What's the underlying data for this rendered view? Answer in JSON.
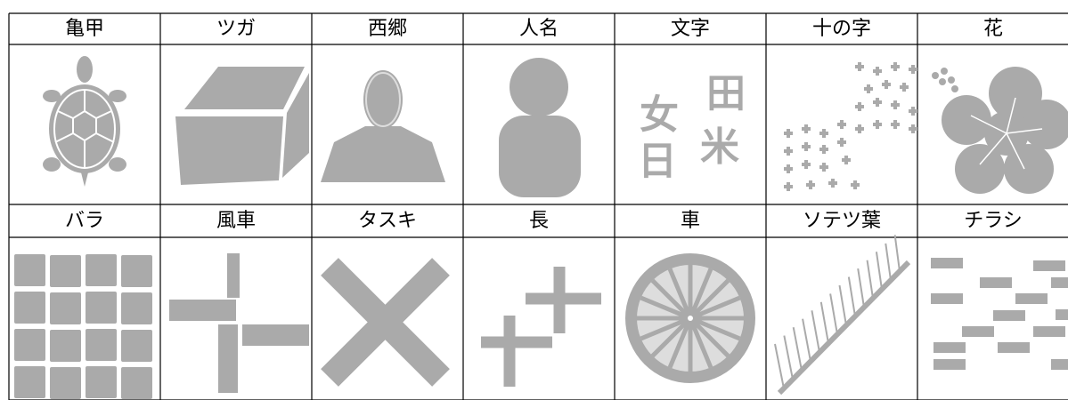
{
  "table": {
    "rows": [
      {
        "labels": [
          "亀甲",
          "ツガ",
          "西郷",
          "人名",
          "文字",
          "十の字",
          "花"
        ]
      },
      {
        "labels": [
          "バラ",
          "風車",
          "タスキ",
          "長",
          "車",
          "ソテツ葉",
          "チラシ"
        ]
      }
    ]
  },
  "moji_icon": [
    "女",
    "田",
    "日",
    "米"
  ]
}
